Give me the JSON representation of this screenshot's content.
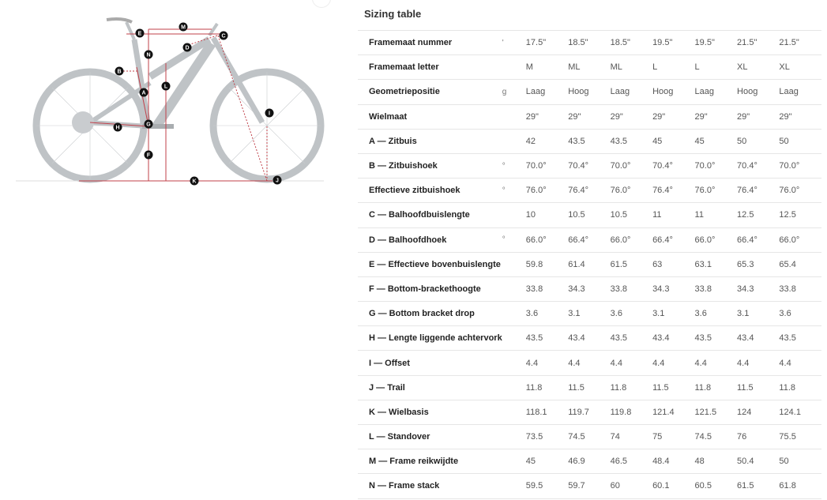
{
  "title": "Sizing table",
  "bike_labels": [
    "A",
    "B",
    "C",
    "D",
    "E",
    "F",
    "G",
    "H",
    "I",
    "J",
    "K",
    "L",
    "M",
    "N"
  ],
  "accent": "#c0404a",
  "rows": [
    {
      "label": "Framemaat nummer",
      "trunc": "'",
      "values": [
        "17.5\"",
        "18.5\"",
        "18.5\"",
        "19.5\"",
        "19.5\"",
        "21.5\"",
        "21.5\""
      ]
    },
    {
      "label": "Framemaat letter",
      "trunc": "",
      "values": [
        "M",
        "ML",
        "ML",
        "L",
        "L",
        "XL",
        "XL"
      ]
    },
    {
      "label": "Geometriepositie",
      "trunc": "g",
      "values": [
        "Laag",
        "Hoog",
        "Laag",
        "Hoog",
        "Laag",
        "Hoog",
        "Laag"
      ]
    },
    {
      "label": "Wielmaat",
      "trunc": "",
      "values": [
        "29\"",
        "29\"",
        "29\"",
        "29\"",
        "29\"",
        "29\"",
        "29\""
      ]
    },
    {
      "label": "A — Zitbuis",
      "trunc": "",
      "values": [
        "42",
        "43.5",
        "43.5",
        "45",
        "45",
        "50",
        "50"
      ]
    },
    {
      "label": "B — Zitbuishoek",
      "trunc": "°",
      "values": [
        "70.0°",
        "70.4°",
        "70.0°",
        "70.4°",
        "70.0°",
        "70.4°",
        "70.0°"
      ]
    },
    {
      "label": "Effectieve zitbuishoek",
      "trunc": "°",
      "values": [
        "76.0°",
        "76.4°",
        "76.0°",
        "76.4°",
        "76.0°",
        "76.4°",
        "76.0°"
      ]
    },
    {
      "label": "C — Balhoofdbuislengte",
      "trunc": "",
      "values": [
        "10",
        "10.5",
        "10.5",
        "11",
        "11",
        "12.5",
        "12.5"
      ]
    },
    {
      "label": "D — Balhoofdhoek",
      "trunc": "°",
      "values": [
        "66.0°",
        "66.4°",
        "66.0°",
        "66.4°",
        "66.0°",
        "66.4°",
        "66.0°"
      ]
    },
    {
      "label": "E — Effectieve bovenbuislengte",
      "trunc": "",
      "values": [
        "59.8",
        "61.4",
        "61.5",
        "63",
        "63.1",
        "65.3",
        "65.4"
      ]
    },
    {
      "label": "F — Bottom-brackethoogte",
      "trunc": "",
      "values": [
        "33.8",
        "34.3",
        "33.8",
        "34.3",
        "33.8",
        "34.3",
        "33.8"
      ]
    },
    {
      "label": "G — Bottom bracket drop",
      "trunc": "",
      "values": [
        "3.6",
        "3.1",
        "3.6",
        "3.1",
        "3.6",
        "3.1",
        "3.6"
      ]
    },
    {
      "label": "H — Lengte liggende achtervork",
      "trunc": "",
      "values": [
        "43.5",
        "43.4",
        "43.5",
        "43.4",
        "43.5",
        "43.4",
        "43.5"
      ]
    },
    {
      "label": "I — Offset",
      "trunc": "",
      "values": [
        "4.4",
        "4.4",
        "4.4",
        "4.4",
        "4.4",
        "4.4",
        "4.4"
      ]
    },
    {
      "label": "J — Trail",
      "trunc": "",
      "values": [
        "11.8",
        "11.5",
        "11.8",
        "11.5",
        "11.8",
        "11.5",
        "11.8"
      ]
    },
    {
      "label": "K — Wielbasis",
      "trunc": "",
      "values": [
        "118.1",
        "119.7",
        "119.8",
        "121.4",
        "121.5",
        "124",
        "124.1"
      ]
    },
    {
      "label": "L — Standover",
      "trunc": "",
      "values": [
        "73.5",
        "74.5",
        "74",
        "75",
        "74.5",
        "76",
        "75.5"
      ]
    },
    {
      "label": "M — Frame reikwijdte",
      "trunc": "",
      "values": [
        "45",
        "46.9",
        "46.5",
        "48.4",
        "48",
        "50.4",
        "50"
      ]
    },
    {
      "label": "N — Frame stack",
      "trunc": "",
      "values": [
        "59.5",
        "59.7",
        "60",
        "60.1",
        "60.5",
        "61.5",
        "61.8"
      ]
    }
  ]
}
